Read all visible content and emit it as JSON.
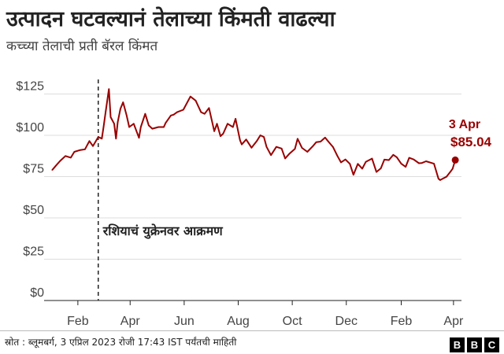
{
  "title": "उत्पादन घटवल्यानं तेलाच्या किंमती वाढल्या",
  "subtitle": "कच्च्या तेलाची प्रती बॅरल किंमत",
  "footer": {
    "source": "स्रोत : ब्लूमबर्ग, 3 एप्रिल 2023 रोजी 17:43 IST पर्यंतची माहिती",
    "logo_letters": [
      "B",
      "B",
      "C"
    ]
  },
  "colors": {
    "line": "#990000",
    "axis": "#222222",
    "grid": "#dddddd"
  },
  "chart_data": {
    "type": "line",
    "title": "",
    "xlabel": "",
    "ylabel": "",
    "grid": true,
    "ylim": [
      0,
      130
    ],
    "y_ticks": [
      0,
      25,
      50,
      75,
      100,
      125
    ],
    "y_tick_labels": [
      "$0",
      "$25",
      "$50",
      "$75",
      "$100",
      "$125"
    ],
    "xlim": [
      "2022-01-01",
      "2023-04-10"
    ],
    "x_ticks": [
      {
        "date": "2022-02-01",
        "label": "Feb"
      },
      {
        "date": "2022-04-01",
        "label": "Apr"
      },
      {
        "date": "2022-06-01",
        "label": "Jun"
      },
      {
        "date": "2022-08-01",
        "label": "Aug"
      },
      {
        "date": "2022-10-01",
        "label": "Oct"
      },
      {
        "date": "2022-12-01",
        "label": "Dec"
      },
      {
        "date": "2023-02-01",
        "label": "Feb"
      },
      {
        "date": "2023-04-01",
        "label": "Apr"
      }
    ],
    "series": [
      {
        "points": [
          [
            "2022-01-03",
            79.0
          ],
          [
            "2022-01-07",
            81.5
          ],
          [
            "2022-01-12",
            84.5
          ],
          [
            "2022-01-18",
            87.5
          ],
          [
            "2022-01-24",
            86.5
          ],
          [
            "2022-01-28",
            90.0
          ],
          [
            "2022-02-03",
            91.0
          ],
          [
            "2022-02-09",
            91.5
          ],
          [
            "2022-02-14",
            96.5
          ],
          [
            "2022-02-18",
            93.5
          ],
          [
            "2022-02-24",
            99.0
          ],
          [
            "2022-02-28",
            98.0
          ],
          [
            "2022-03-02",
            105.0
          ],
          [
            "2022-03-04",
            113.0
          ],
          [
            "2022-03-08",
            128.0
          ],
          [
            "2022-03-10",
            111.0
          ],
          [
            "2022-03-14",
            107.0
          ],
          [
            "2022-03-16",
            98.0
          ],
          [
            "2022-03-18",
            108.0
          ],
          [
            "2022-03-21",
            116.0
          ],
          [
            "2022-03-24",
            120.0
          ],
          [
            "2022-03-28",
            112.0
          ],
          [
            "2022-03-31",
            105.0
          ],
          [
            "2022-04-05",
            107.0
          ],
          [
            "2022-04-11",
            98.5
          ],
          [
            "2022-04-13",
            105.0
          ],
          [
            "2022-04-18",
            113.0
          ],
          [
            "2022-04-22",
            106.0
          ],
          [
            "2022-04-26",
            104.0
          ],
          [
            "2022-05-03",
            105.0
          ],
          [
            "2022-05-09",
            105.0
          ],
          [
            "2022-05-11",
            107.5
          ],
          [
            "2022-05-17",
            112.0
          ],
          [
            "2022-05-20",
            112.5
          ],
          [
            "2022-05-24",
            114.0
          ],
          [
            "2022-05-31",
            115.5
          ],
          [
            "2022-06-08",
            123.5
          ],
          [
            "2022-06-14",
            121.0
          ],
          [
            "2022-06-20",
            114.0
          ],
          [
            "2022-06-24",
            113.0
          ],
          [
            "2022-06-29",
            116.5
          ],
          [
            "2022-07-05",
            102.5
          ],
          [
            "2022-07-08",
            107.0
          ],
          [
            "2022-07-12",
            99.5
          ],
          [
            "2022-07-15",
            101.0
          ],
          [
            "2022-07-20",
            107.0
          ],
          [
            "2022-07-26",
            105.0
          ],
          [
            "2022-07-29",
            110.0
          ],
          [
            "2022-08-03",
            97.0
          ],
          [
            "2022-08-05",
            94.5
          ],
          [
            "2022-08-10",
            97.5
          ],
          [
            "2022-08-16",
            92.5
          ],
          [
            "2022-08-22",
            96.5
          ],
          [
            "2022-08-26",
            100.0
          ],
          [
            "2022-08-30",
            99.0
          ],
          [
            "2022-09-02",
            93.0
          ],
          [
            "2022-09-07",
            88.0
          ],
          [
            "2022-09-13",
            93.0
          ],
          [
            "2022-09-19",
            92.0
          ],
          [
            "2022-09-23",
            86.0
          ],
          [
            "2022-09-28",
            89.0
          ],
          [
            "2022-10-04",
            91.8
          ],
          [
            "2022-10-07",
            97.9
          ],
          [
            "2022-10-12",
            92.4
          ],
          [
            "2022-10-18",
            90.0
          ],
          [
            "2022-10-24",
            93.3
          ],
          [
            "2022-10-28",
            95.8
          ],
          [
            "2022-11-02",
            96.2
          ],
          [
            "2022-11-07",
            98.6
          ],
          [
            "2022-11-11",
            96.0
          ],
          [
            "2022-11-16",
            92.9
          ],
          [
            "2022-11-21",
            87.5
          ],
          [
            "2022-11-25",
            83.6
          ],
          [
            "2022-11-30",
            85.4
          ],
          [
            "2022-12-05",
            82.7
          ],
          [
            "2022-12-09",
            76.1
          ],
          [
            "2022-12-14",
            82.7
          ],
          [
            "2022-12-19",
            79.8
          ],
          [
            "2022-12-23",
            83.9
          ],
          [
            "2022-12-30",
            85.9
          ],
          [
            "2023-01-04",
            77.8
          ],
          [
            "2023-01-09",
            80.0
          ],
          [
            "2023-01-13",
            85.3
          ],
          [
            "2023-01-18",
            85.0
          ],
          [
            "2023-01-23",
            88.2
          ],
          [
            "2023-01-27",
            86.7
          ],
          [
            "2023-02-01",
            82.8
          ],
          [
            "2023-02-06",
            80.9
          ],
          [
            "2023-02-10",
            86.4
          ],
          [
            "2023-02-15",
            85.4
          ],
          [
            "2023-02-21",
            83.1
          ],
          [
            "2023-02-24",
            83.2
          ],
          [
            "2023-03-01",
            84.3
          ],
          [
            "2023-03-07",
            83.3
          ],
          [
            "2023-03-10",
            82.8
          ],
          [
            "2023-03-15",
            73.7
          ],
          [
            "2023-03-17",
            72.9
          ],
          [
            "2023-03-20",
            73.8
          ],
          [
            "2023-03-24",
            74.9
          ],
          [
            "2023-03-29",
            78.3
          ],
          [
            "2023-03-31",
            79.8
          ],
          [
            "2023-04-03",
            85.04
          ]
        ]
      }
    ],
    "annotations": [
      {
        "type": "vline",
        "date": "2022-02-24",
        "label": "रशियाचं युक्रेनवर आक्रमण"
      },
      {
        "type": "endpoint",
        "date": "2023-04-03",
        "value": 85.04,
        "date_label": "3 Apr",
        "value_label": "$85.04"
      }
    ]
  }
}
